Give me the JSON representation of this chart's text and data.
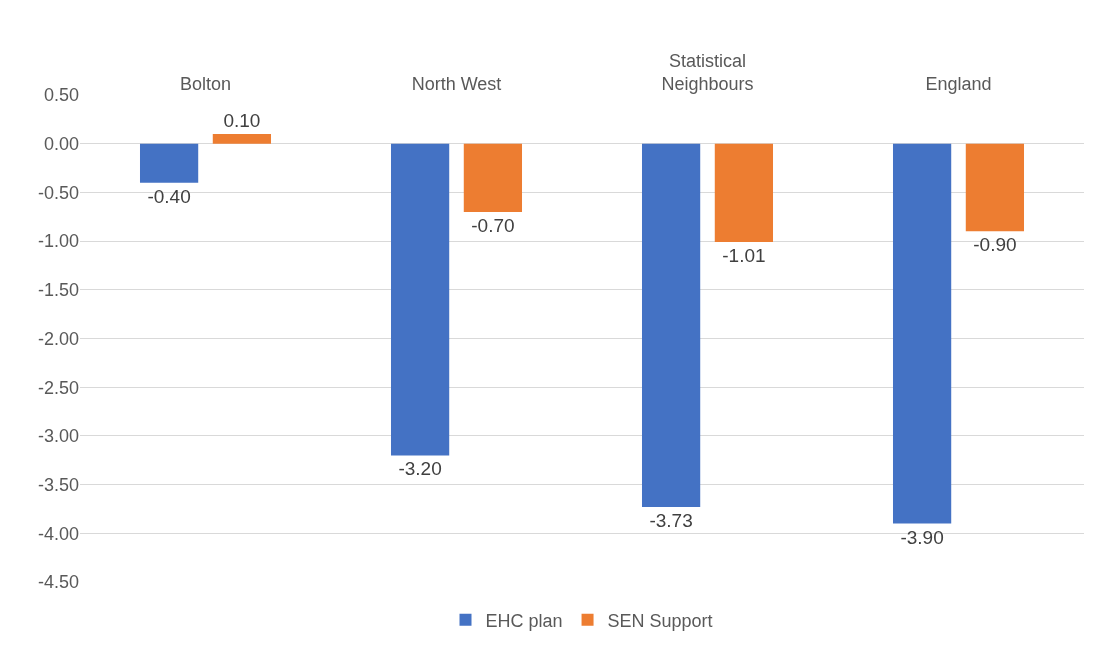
{
  "chart_data": {
    "type": "bar",
    "categories": [
      "Bolton",
      "North West",
      "Statistical Neighbours",
      "England"
    ],
    "series": [
      {
        "name": "EHC plan",
        "color": "#4472c4",
        "values": [
          -0.4,
          -3.2,
          -3.73,
          -3.9
        ],
        "value_labels": [
          "-0.40",
          "-3.20",
          "-3.73",
          "-3.90"
        ]
      },
      {
        "name": "SEN Support",
        "color": "#ed7d31",
        "values": [
          0.1,
          -0.7,
          -1.01,
          -0.9
        ],
        "value_labels": [
          "0.10",
          "-0.70",
          "-1.01",
          "-0.90"
        ]
      }
    ],
    "ylim": [
      -4.5,
      0.5
    ],
    "yticks": [
      {
        "value": 0.5,
        "label": "0.50"
      },
      {
        "value": 0,
        "label": "0.00"
      },
      {
        "value": -0.5,
        "label": "-0.50"
      },
      {
        "value": -1,
        "label": "-1.00"
      },
      {
        "value": -1.5,
        "label": "-1.50"
      },
      {
        "value": -2,
        "label": "-2.00"
      },
      {
        "value": -2.5,
        "label": "-2.50"
      },
      {
        "value": -3,
        "label": "-3.00"
      },
      {
        "value": -3.5,
        "label": "-3.50"
      },
      {
        "value": -4,
        "label": "-4.00"
      },
      {
        "value": -4.5,
        "label": "-4.50"
      }
    ],
    "grid": "y",
    "legend": "bottom"
  }
}
